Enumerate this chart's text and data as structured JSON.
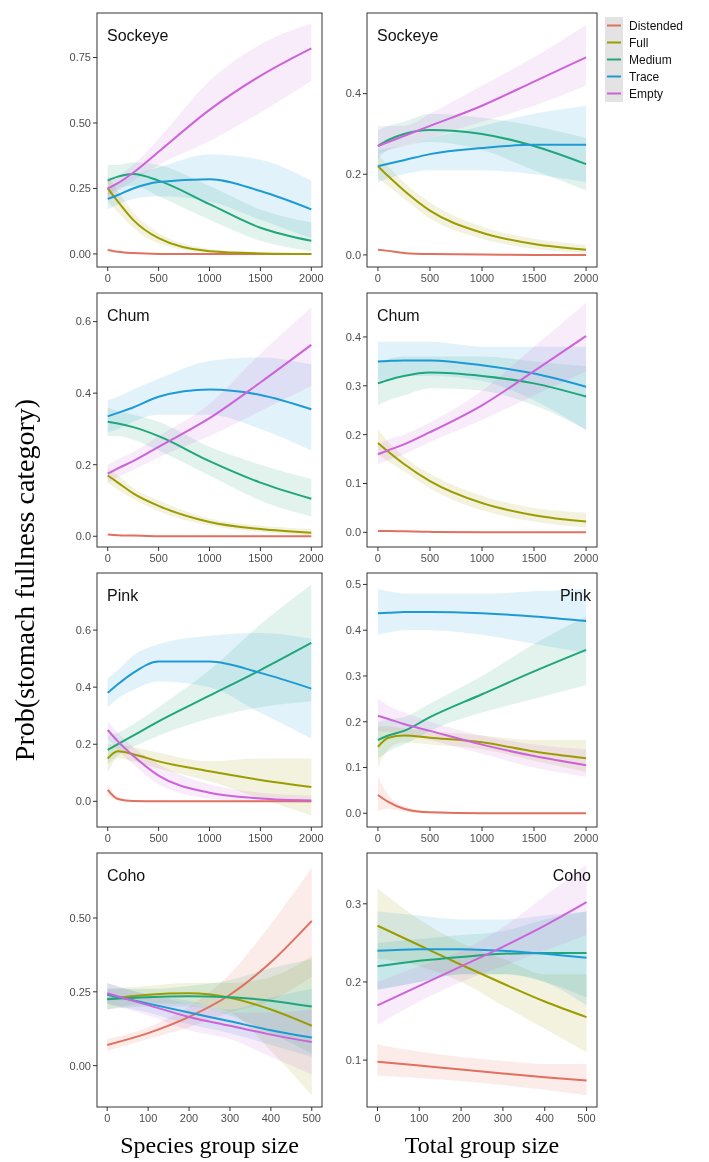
{
  "chart_data": [
    {
      "type": "line",
      "title": "Sockeye",
      "x": [
        0,
        100,
        250,
        500,
        1000,
        1500,
        2000
      ],
      "xlim": [
        -105,
        2105
      ],
      "xticks": [
        0,
        500,
        1000,
        1500,
        2000
      ],
      "ylim": [
        -0.05,
        0.92
      ],
      "yticks": [
        {
          "value": 0,
          "label": "0.00"
        },
        {
          "value": 0.25,
          "label": "0.25"
        },
        {
          "value": 0.5,
          "label": "0.50"
        },
        {
          "value": 0.75,
          "label": "0.75"
        }
      ],
      "series": [
        {
          "color": "#e0705f",
          "values": [
            0.015,
            0.008,
            0.003,
            0,
            0,
            0,
            0
          ]
        },
        {
          "color": "#9c9c00",
          "values": [
            0.25,
            0.2,
            0.13,
            0.06,
            0.01,
            0.002,
            0
          ],
          "lower": [
            0.2,
            0.16,
            0.1,
            0.04,
            0.005,
            0,
            0
          ],
          "upper": [
            0.3,
            0.24,
            0.16,
            0.08,
            0.02,
            0.006,
            0.003
          ]
        },
        {
          "color": "#1fa67a",
          "values": [
            0.28,
            0.295,
            0.305,
            0.28,
            0.19,
            0.1,
            0.05
          ],
          "lower": [
            0.22,
            0.25,
            0.26,
            0.22,
            0.13,
            0.05,
            0.01
          ],
          "upper": [
            0.34,
            0.34,
            0.35,
            0.34,
            0.26,
            0.17,
            0.12
          ]
        },
        {
          "color": "#1c9ad6",
          "values": [
            0.21,
            0.225,
            0.25,
            0.275,
            0.285,
            0.24,
            0.17
          ],
          "lower": [
            0.17,
            0.19,
            0.21,
            0.22,
            0.2,
            0.13,
            0.06
          ],
          "upper": [
            0.25,
            0.27,
            0.3,
            0.33,
            0.38,
            0.36,
            0.28
          ]
        },
        {
          "color": "#cc63d9",
          "values": [
            0.25,
            0.27,
            0.31,
            0.39,
            0.55,
            0.68,
            0.785
          ],
          "lower": [
            0.21,
            0.24,
            0.28,
            0.34,
            0.43,
            0.54,
            0.66
          ],
          "upper": [
            0.29,
            0.3,
            0.34,
            0.44,
            0.66,
            0.8,
            0.88
          ]
        }
      ]
    },
    {
      "type": "line",
      "title": "Sockeye",
      "legend": "right",
      "x": [
        0,
        100,
        250,
        500,
        1000,
        1500,
        2000
      ],
      "xlim": [
        -105,
        2105
      ],
      "xticks": [
        0,
        500,
        1000,
        1500,
        2000
      ],
      "ylim": [
        -0.03,
        0.6
      ],
      "yticks": [
        {
          "value": 0,
          "label": "0.0"
        },
        {
          "value": 0.2,
          "label": "0.2"
        },
        {
          "value": 0.4,
          "label": "0.4"
        }
      ],
      "series": [
        {
          "name": "Distended",
          "color": "#e0705f",
          "values": [
            0.013,
            0.01,
            0.005,
            0.002,
            0.001,
            0,
            0
          ]
        },
        {
          "name": "Full",
          "color": "#9c9c00",
          "values": [
            0.22,
            0.195,
            0.16,
            0.11,
            0.055,
            0.027,
            0.013
          ],
          "lower": [
            0.19,
            0.17,
            0.14,
            0.09,
            0.04,
            0.015,
            0.005
          ],
          "upper": [
            0.25,
            0.22,
            0.18,
            0.13,
            0.07,
            0.04,
            0.025
          ]
        },
        {
          "name": "Medium",
          "color": "#1fa67a",
          "values": [
            0.27,
            0.285,
            0.3,
            0.31,
            0.3,
            0.27,
            0.225
          ],
          "lower": [
            0.24,
            0.26,
            0.27,
            0.28,
            0.26,
            0.21,
            0.16
          ],
          "upper": [
            0.31,
            0.32,
            0.33,
            0.35,
            0.34,
            0.32,
            0.29
          ]
        },
        {
          "name": "Trace",
          "color": "#1c9ad6",
          "values": [
            0.22,
            0.226,
            0.235,
            0.25,
            0.265,
            0.273,
            0.273
          ],
          "lower": [
            0.18,
            0.19,
            0.2,
            0.21,
            0.21,
            0.2,
            0.18
          ],
          "upper": [
            0.26,
            0.265,
            0.27,
            0.29,
            0.32,
            0.35,
            0.37
          ]
        },
        {
          "name": "Empty",
          "color": "#cc63d9",
          "values": [
            0.27,
            0.28,
            0.295,
            0.32,
            0.37,
            0.43,
            0.49
          ],
          "lower": [
            0.25,
            0.26,
            0.27,
            0.29,
            0.33,
            0.37,
            0.42
          ],
          "upper": [
            0.32,
            0.32,
            0.32,
            0.35,
            0.42,
            0.49,
            0.57
          ]
        }
      ]
    },
    {
      "type": "line",
      "title": "Chum",
      "x": [
        0,
        100,
        250,
        500,
        1000,
        1500,
        2000
      ],
      "xlim": [
        -105,
        2105
      ],
      "xticks": [
        0,
        500,
        1000,
        1500,
        2000
      ],
      "ylim": [
        -0.03,
        0.68
      ],
      "yticks": [
        {
          "value": 0,
          "label": "0.0"
        },
        {
          "value": 0.2,
          "label": "0.2"
        },
        {
          "value": 0.4,
          "label": "0.4"
        },
        {
          "value": 0.6,
          "label": "0.6"
        }
      ],
      "series": [
        {
          "color": "#e0705f",
          "values": [
            0.005,
            0.003,
            0.002,
            0,
            0,
            0,
            0
          ]
        },
        {
          "color": "#9c9c00",
          "values": [
            0.17,
            0.15,
            0.12,
            0.085,
            0.04,
            0.02,
            0.01
          ],
          "lower": [
            0.15,
            0.13,
            0.105,
            0.07,
            0.03,
            0.012,
            0.003
          ],
          "upper": [
            0.19,
            0.17,
            0.135,
            0.1,
            0.05,
            0.03,
            0.02
          ]
        },
        {
          "color": "#1fa67a",
          "values": [
            0.32,
            0.315,
            0.305,
            0.28,
            0.21,
            0.15,
            0.105
          ],
          "lower": [
            0.28,
            0.28,
            0.27,
            0.24,
            0.17,
            0.1,
            0.055
          ],
          "upper": [
            0.36,
            0.35,
            0.34,
            0.32,
            0.25,
            0.2,
            0.16
          ]
        },
        {
          "color": "#1c9ad6",
          "values": [
            0.335,
            0.345,
            0.36,
            0.39,
            0.41,
            0.395,
            0.355
          ],
          "lower": [
            0.29,
            0.3,
            0.32,
            0.34,
            0.34,
            0.3,
            0.24
          ],
          "upper": [
            0.38,
            0.39,
            0.41,
            0.44,
            0.49,
            0.5,
            0.48
          ]
        },
        {
          "color": "#cc63d9",
          "values": [
            0.175,
            0.19,
            0.21,
            0.25,
            0.33,
            0.43,
            0.535
          ],
          "lower": [
            0.15,
            0.165,
            0.185,
            0.22,
            0.28,
            0.35,
            0.42
          ],
          "upper": [
            0.2,
            0.215,
            0.235,
            0.28,
            0.37,
            0.51,
            0.64
          ]
        }
      ]
    },
    {
      "type": "line",
      "title": "Chum",
      "x": [
        0,
        100,
        250,
        500,
        1000,
        1500,
        2000
      ],
      "xlim": [
        -105,
        2105
      ],
      "xticks": [
        0,
        500,
        1000,
        1500,
        2000
      ],
      "ylim": [
        -0.03,
        0.49
      ],
      "yticks": [
        {
          "value": 0,
          "label": "0.0"
        },
        {
          "value": 0.1,
          "label": "0.1"
        },
        {
          "value": 0.2,
          "label": "0.2"
        },
        {
          "value": 0.3,
          "label": "0.3"
        },
        {
          "value": 0.4,
          "label": "0.4"
        }
      ],
      "series": [
        {
          "color": "#e0705f",
          "values": [
            0.003,
            0.003,
            0.002,
            0.001,
            0,
            0,
            0
          ]
        },
        {
          "color": "#9c9c00",
          "values": [
            0.183,
            0.165,
            0.14,
            0.105,
            0.06,
            0.035,
            0.022
          ],
          "lower": [
            0.16,
            0.145,
            0.125,
            0.09,
            0.045,
            0.022,
            0.01
          ],
          "upper": [
            0.21,
            0.185,
            0.155,
            0.12,
            0.075,
            0.05,
            0.04
          ]
        },
        {
          "color": "#1fa67a",
          "values": [
            0.305,
            0.312,
            0.32,
            0.327,
            0.32,
            0.305,
            0.278
          ],
          "lower": [
            0.26,
            0.27,
            0.28,
            0.295,
            0.29,
            0.26,
            0.21
          ],
          "upper": [
            0.35,
            0.355,
            0.36,
            0.36,
            0.36,
            0.35,
            0.34
          ]
        },
        {
          "color": "#1c9ad6",
          "values": [
            0.35,
            0.351,
            0.352,
            0.352,
            0.342,
            0.325,
            0.298
          ],
          "lower": [
            0.31,
            0.315,
            0.32,
            0.32,
            0.31,
            0.27,
            0.21
          ],
          "upper": [
            0.39,
            0.39,
            0.39,
            0.39,
            0.38,
            0.38,
            0.38
          ]
        },
        {
          "color": "#cc63d9",
          "values": [
            0.16,
            0.168,
            0.18,
            0.205,
            0.26,
            0.33,
            0.402
          ],
          "lower": [
            0.14,
            0.148,
            0.16,
            0.185,
            0.23,
            0.28,
            0.33
          ],
          "upper": [
            0.18,
            0.19,
            0.2,
            0.225,
            0.29,
            0.38,
            0.47
          ]
        }
      ]
    },
    {
      "type": "line",
      "title": "Pink",
      "ylabel": "Prob(stomach fullness category)",
      "x": [
        0,
        100,
        250,
        500,
        1000,
        1500,
        2000
      ],
      "xlim": [
        -105,
        2105
      ],
      "xticks": [
        0,
        500,
        1000,
        1500,
        2000
      ],
      "ylim": [
        -0.09,
        0.8
      ],
      "yticks": [
        {
          "value": 0,
          "label": "0.0"
        },
        {
          "value": 0.2,
          "label": "0.2"
        },
        {
          "value": 0.4,
          "label": "0.4"
        },
        {
          "value": 0.6,
          "label": "0.6"
        }
      ],
      "series": [
        {
          "color": "#e0705f",
          "values": [
            0.04,
            0.008,
            0.001,
            0,
            0,
            0,
            0
          ],
          "lower": [
            0.02,
            0.003,
            0,
            0,
            0,
            0,
            0
          ],
          "upper": [
            0.06,
            0.015,
            0.004,
            0.002,
            0.001,
            0.001,
            0.001
          ]
        },
        {
          "color": "#9c9c00",
          "values": [
            0.15,
            0.175,
            0.165,
            0.14,
            0.105,
            0.075,
            0.05
          ],
          "lower": [
            0.1,
            0.15,
            0.14,
            0.115,
            0.07,
            0.01,
            -0.05
          ],
          "upper": [
            0.2,
            0.2,
            0.19,
            0.17,
            0.14,
            0.15,
            0.15
          ]
        },
        {
          "color": "#1fa67a",
          "values": [
            0.18,
            0.2,
            0.23,
            0.28,
            0.37,
            0.46,
            0.555
          ],
          "lower": [
            0.13,
            0.16,
            0.19,
            0.23,
            0.29,
            0.33,
            0.35
          ],
          "upper": [
            0.23,
            0.24,
            0.27,
            0.33,
            0.46,
            0.62,
            0.76
          ]
        },
        {
          "color": "#1c9ad6",
          "values": [
            0.38,
            0.41,
            0.45,
            0.49,
            0.49,
            0.45,
            0.395
          ],
          "lower": [
            0.33,
            0.36,
            0.39,
            0.42,
            0.4,
            0.31,
            0.22
          ],
          "upper": [
            0.43,
            0.46,
            0.51,
            0.55,
            0.58,
            0.59,
            0.57
          ]
        },
        {
          "color": "#cc63d9",
          "values": [
            0.25,
            0.21,
            0.16,
            0.09,
            0.03,
            0.01,
            0.003
          ],
          "lower": [
            0.22,
            0.18,
            0.13,
            0.06,
            0.01,
            0,
            -0.005
          ],
          "upper": [
            0.28,
            0.24,
            0.19,
            0.13,
            0.06,
            0.03,
            0.02
          ]
        }
      ]
    },
    {
      "type": "line",
      "title": "Pink",
      "x": [
        0,
        100,
        250,
        500,
        1000,
        1500,
        2000
      ],
      "xlim": [
        -105,
        2105
      ],
      "xticks": [
        0,
        500,
        1000,
        1500,
        2000
      ],
      "ylim": [
        -0.03,
        0.525
      ],
      "yticks": [
        {
          "value": 0,
          "label": "0.0"
        },
        {
          "value": 0.1,
          "label": "0.1"
        },
        {
          "value": 0.2,
          "label": "0.2"
        },
        {
          "value": 0.3,
          "label": "0.3"
        },
        {
          "value": 0.4,
          "label": "0.4"
        },
        {
          "value": 0.5,
          "label": "0.5"
        }
      ],
      "series": [
        {
          "color": "#e0705f",
          "values": [
            0.04,
            0.025,
            0.01,
            0.002,
            0,
            0,
            0
          ],
          "lower": [
            0.005,
            0.01,
            0.004,
            0,
            0,
            0,
            0
          ],
          "upper": [
            0.08,
            0.04,
            0.016,
            0.005,
            0.002,
            0.001,
            0.001
          ]
        },
        {
          "color": "#9c9c00",
          "values": [
            0.145,
            0.165,
            0.17,
            0.165,
            0.155,
            0.135,
            0.12
          ],
          "lower": [
            0.1,
            0.14,
            0.155,
            0.15,
            0.14,
            0.115,
            0.09
          ],
          "upper": [
            0.19,
            0.19,
            0.185,
            0.18,
            0.17,
            0.16,
            0.16
          ]
        },
        {
          "color": "#1fa67a",
          "values": [
            0.16,
            0.17,
            0.18,
            0.21,
            0.26,
            0.31,
            0.357
          ],
          "lower": [
            0.12,
            0.135,
            0.15,
            0.18,
            0.22,
            0.25,
            0.28
          ],
          "upper": [
            0.2,
            0.205,
            0.21,
            0.24,
            0.3,
            0.37,
            0.43
          ]
        },
        {
          "color": "#1c9ad6",
          "values": [
            0.437,
            0.438,
            0.44,
            0.44,
            0.437,
            0.43,
            0.42
          ],
          "lower": [
            0.39,
            0.395,
            0.4,
            0.4,
            0.39,
            0.37,
            0.35
          ],
          "upper": [
            0.49,
            0.485,
            0.48,
            0.48,
            0.48,
            0.485,
            0.49
          ]
        },
        {
          "color": "#cc63d9",
          "values": [
            0.213,
            0.206,
            0.195,
            0.18,
            0.15,
            0.125,
            0.105
          ],
          "lower": [
            0.18,
            0.178,
            0.172,
            0.16,
            0.13,
            0.1,
            0.08
          ],
          "upper": [
            0.25,
            0.235,
            0.22,
            0.2,
            0.17,
            0.15,
            0.14
          ]
        }
      ]
    },
    {
      "type": "line",
      "title": "Coho",
      "xlabel": "Species group size",
      "x": [
        0,
        100,
        200,
        300,
        400,
        500
      ],
      "xlim": [
        -25,
        525
      ],
      "xticks": [
        0,
        100,
        200,
        300,
        400,
        500
      ],
      "ylim": [
        -0.14,
        0.72
      ],
      "yticks": [
        {
          "value": 0,
          "label": "0.00"
        },
        {
          "value": 0.25,
          "label": "0.25"
        },
        {
          "value": 0.5,
          "label": "0.50"
        }
      ],
      "series": [
        {
          "color": "#e0705f",
          "values": [
            0.07,
            0.11,
            0.165,
            0.24,
            0.35,
            0.49
          ],
          "lower": [
            0.05,
            0.09,
            0.13,
            0.18,
            0.22,
            0.3
          ],
          "upper": [
            0.09,
            0.13,
            0.2,
            0.31,
            0.48,
            0.67
          ]
        },
        {
          "color": "#9c9c00",
          "values": [
            0.225,
            0.24,
            0.245,
            0.23,
            0.19,
            0.135
          ],
          "lower": [
            0.19,
            0.21,
            0.21,
            0.18,
            0.05,
            -0.1
          ],
          "upper": [
            0.26,
            0.27,
            0.28,
            0.28,
            0.3,
            0.37
          ]
        },
        {
          "color": "#1fa67a",
          "values": [
            0.225,
            0.232,
            0.235,
            0.232,
            0.22,
            0.2
          ],
          "lower": [
            0.19,
            0.2,
            0.2,
            0.17,
            0.11,
            0.04
          ],
          "upper": [
            0.26,
            0.26,
            0.27,
            0.29,
            0.33,
            0.36
          ]
        },
        {
          "color": "#1c9ad6",
          "values": [
            0.24,
            0.21,
            0.18,
            0.15,
            0.12,
            0.095
          ],
          "lower": [
            0.21,
            0.18,
            0.14,
            0.11,
            0.07,
            0.03
          ],
          "upper": [
            0.28,
            0.24,
            0.22,
            0.19,
            0.23,
            0.26
          ]
        },
        {
          "color": "#cc63d9",
          "values": [
            0.245,
            0.205,
            0.165,
            0.135,
            0.105,
            0.08
          ],
          "lower": [
            0.21,
            0.17,
            0.12,
            0.09,
            0.03,
            -0.03
          ],
          "upper": [
            0.28,
            0.24,
            0.21,
            0.18,
            0.18,
            0.19
          ]
        }
      ]
    },
    {
      "type": "line",
      "title": "Coho",
      "xlabel": "Total group size",
      "x": [
        0,
        100,
        200,
        300,
        400,
        500
      ],
      "xlim": [
        -25,
        525
      ],
      "xticks": [
        0,
        100,
        200,
        300,
        400,
        500
      ],
      "ylim": [
        0.04,
        0.365
      ],
      "yticks": [
        {
          "value": 0.1,
          "label": "0.1"
        },
        {
          "value": 0.2,
          "label": "0.2"
        },
        {
          "value": 0.3,
          "label": "0.3"
        }
      ],
      "series": [
        {
          "color": "#e0705f",
          "values": [
            0.098,
            0.093,
            0.088,
            0.083,
            0.078,
            0.074
          ],
          "lower": [
            0.08,
            0.077,
            0.073,
            0.068,
            0.062,
            0.055
          ],
          "upper": [
            0.12,
            0.111,
            0.104,
            0.099,
            0.095,
            0.095
          ]
        },
        {
          "color": "#9c9c00",
          "values": [
            0.272,
            0.247,
            0.222,
            0.198,
            0.175,
            0.155
          ],
          "lower": [
            0.23,
            0.22,
            0.2,
            0.17,
            0.14,
            0.11
          ],
          "upper": [
            0.32,
            0.28,
            0.25,
            0.23,
            0.21,
            0.21
          ]
        },
        {
          "color": "#1fa67a",
          "values": [
            0.22,
            0.227,
            0.232,
            0.236,
            0.237,
            0.237
          ],
          "lower": [
            0.19,
            0.2,
            0.21,
            0.21,
            0.2,
            0.18
          ],
          "upper": [
            0.25,
            0.255,
            0.26,
            0.265,
            0.28,
            0.29
          ]
        },
        {
          "color": "#1c9ad6",
          "values": [
            0.24,
            0.242,
            0.242,
            0.24,
            0.236,
            0.231
          ],
          "lower": [
            0.19,
            0.2,
            0.21,
            0.21,
            0.2,
            0.17
          ],
          "upper": [
            0.29,
            0.285,
            0.28,
            0.28,
            0.285,
            0.29
          ]
        },
        {
          "color": "#cc63d9",
          "values": [
            0.17,
            0.195,
            0.22,
            0.245,
            0.272,
            0.302
          ],
          "lower": [
            0.145,
            0.175,
            0.2,
            0.22,
            0.24,
            0.26
          ],
          "upper": [
            0.2,
            0.22,
            0.24,
            0.27,
            0.31,
            0.35
          ]
        }
      ]
    }
  ]
}
